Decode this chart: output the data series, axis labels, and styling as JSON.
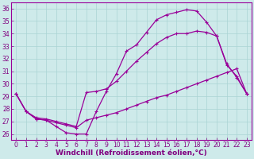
{
  "xlabel": "Windchill (Refroidissement éolien,°C)",
  "background_color": "#ceeaea",
  "line_color": "#990099",
  "xlim": [
    -0.5,
    23.5
  ],
  "ylim": [
    25.5,
    36.5
  ],
  "xticks": [
    0,
    1,
    2,
    3,
    4,
    5,
    6,
    7,
    8,
    9,
    10,
    11,
    12,
    13,
    14,
    15,
    16,
    17,
    18,
    19,
    20,
    21,
    22,
    23
  ],
  "yticks": [
    26,
    27,
    28,
    29,
    30,
    31,
    32,
    33,
    34,
    35,
    36
  ],
  "line1_x": [
    0,
    1,
    2,
    3,
    4,
    5,
    6,
    7,
    8,
    9,
    10,
    11,
    12,
    13,
    14,
    15,
    16,
    17,
    18,
    19,
    20,
    21,
    22,
    23
  ],
  "line1_y": [
    29.2,
    27.8,
    27.2,
    27.1,
    26.6,
    26.1,
    26.0,
    26.0,
    27.8,
    29.4,
    30.8,
    32.6,
    33.1,
    34.1,
    35.1,
    35.5,
    35.7,
    35.9,
    35.8,
    34.9,
    33.8,
    31.6,
    30.5,
    29.2
  ],
  "line2_x": [
    0,
    1,
    2,
    3,
    4,
    5,
    6,
    7,
    8,
    9,
    10,
    11,
    12,
    13,
    14,
    15,
    16,
    17,
    18,
    19,
    20,
    21,
    22,
    23
  ],
  "line2_y": [
    29.2,
    27.8,
    27.2,
    27.1,
    26.9,
    26.7,
    26.5,
    27.1,
    27.3,
    27.5,
    27.7,
    28.0,
    28.3,
    28.6,
    28.9,
    29.1,
    29.4,
    29.7,
    30.0,
    30.3,
    30.6,
    30.9,
    31.2,
    29.2
  ],
  "line3_x": [
    0,
    1,
    2,
    3,
    4,
    5,
    6,
    7,
    8,
    9,
    10,
    11,
    12,
    13,
    14,
    15,
    16,
    17,
    18,
    19,
    20,
    21,
    22,
    23
  ],
  "line3_y": [
    29.2,
    27.8,
    27.3,
    27.2,
    27.0,
    26.8,
    26.6,
    29.3,
    29.4,
    29.6,
    30.2,
    31.0,
    31.8,
    32.5,
    33.2,
    33.7,
    34.0,
    34.0,
    34.2,
    34.1,
    33.8,
    31.5,
    30.6,
    29.2
  ],
  "markersize": 2.5,
  "linewidth": 0.9,
  "grid_color": "#aad4d4",
  "tick_color": "#800080",
  "label_color": "#800080",
  "xlabel_fontsize": 6.5,
  "tick_fontsize": 5.5
}
